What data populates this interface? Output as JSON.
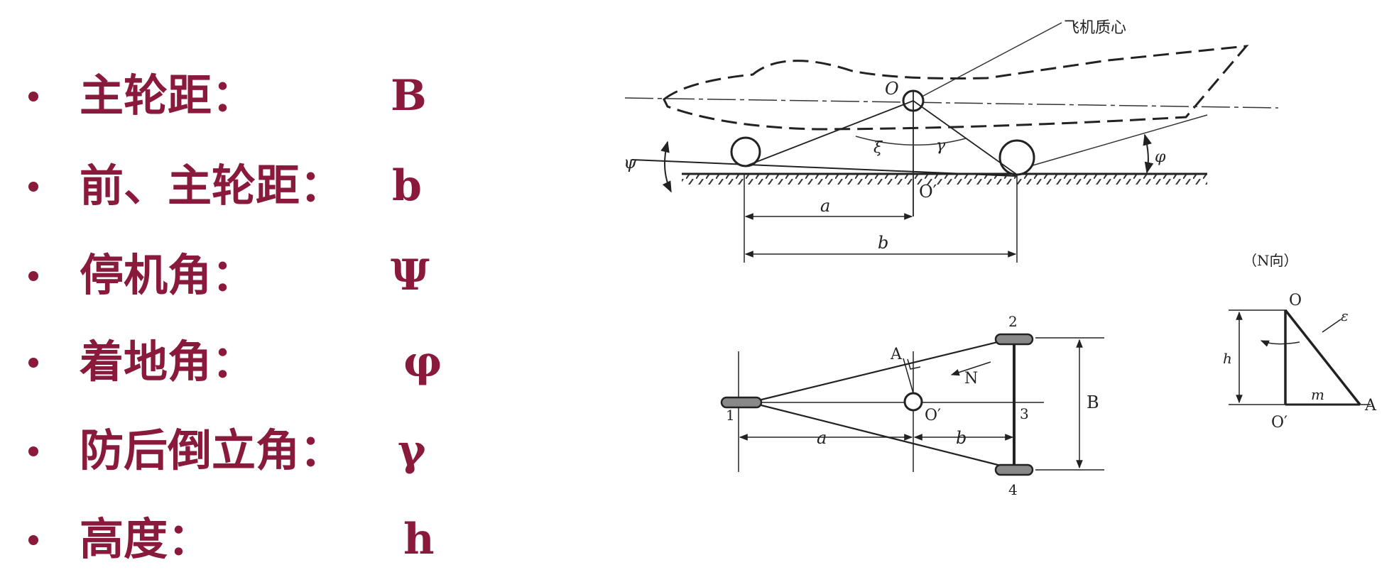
{
  "items": [
    {
      "label": "主轮距：",
      "symbol": "B"
    },
    {
      "label": "前、主轮距：",
      "symbol": "b"
    },
    {
      "label": "停机角：",
      "symbol": "Ψ"
    },
    {
      "label": "着地角：",
      "symbol": "φ"
    },
    {
      "label": "防后倒立角：",
      "symbol": "γ"
    },
    {
      "label": "高度：",
      "symbol": "h"
    }
  ],
  "diagram": {
    "side_view": {
      "cg_caption": "飞机质心",
      "point_O": "O",
      "point_O_prime": "O′",
      "angle_psi": "ψ",
      "angle_phi": "φ",
      "angle_xi": "ξ",
      "angle_gamma": "γ",
      "dim_a": "a",
      "dim_b": "b"
    },
    "plan_view": {
      "label_1": "1",
      "label_2": "2",
      "label_3": "3",
      "label_4": "4",
      "label_A": "A",
      "label_N": "N",
      "point_O_prime": "O′",
      "dim_B": "B",
      "dim_a": "a",
      "dim_b": "b"
    },
    "n_view": {
      "caption": "（N向）",
      "label_O": "O",
      "label_O_prime": "O′",
      "label_A": "A",
      "label_h": "h",
      "label_m": "m",
      "label_eps": "ε"
    }
  }
}
